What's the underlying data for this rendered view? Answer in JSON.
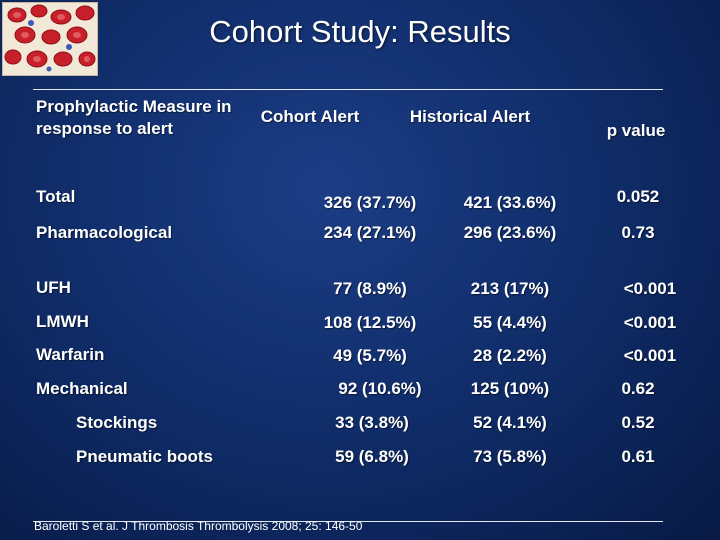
{
  "title": "Cohort Study: Results",
  "table": {
    "headers": {
      "measure": "Prophylactic Measure in response to alert",
      "cohort": "Cohort Alert",
      "historical": "Historical Alert",
      "pvalue": "p value"
    },
    "rows": [
      {
        "measure": "Total",
        "cohort": "326 (37.7%)",
        "historical": "421 (33.6%)",
        "pvalue": "0.052"
      },
      {
        "measure": "Pharmacological",
        "cohort": "234 (27.1%)",
        "historical": "296 (23.6%)",
        "pvalue": "0.73"
      },
      {
        "measure": "UFH",
        "cohort": "77 (8.9%)",
        "historical": "213 (17%)",
        "pvalue": "<0.001"
      },
      {
        "measure": "LMWH",
        "cohort": "108 (12.5%)",
        "historical": "55 (4.4%)",
        "pvalue": "<0.001"
      },
      {
        "measure": "Warfarin",
        "cohort": "49 (5.7%)",
        "historical": "28 (2.2%)",
        "pvalue": "<0.001"
      },
      {
        "measure": "Mechanical",
        "cohort": "92 (10.6%)",
        "historical": "125 (10%)",
        "pvalue": "0.62"
      },
      {
        "measure": "Stockings",
        "cohort": "33 (3.8%)",
        "historical": "52 (4.1%)",
        "pvalue": "0.52"
      },
      {
        "measure": "Pneumatic boots",
        "cohort": "59 (6.8%)",
        "historical": "73 (5.8%)",
        "pvalue": "0.61"
      }
    ]
  },
  "citation": "Baroletti S et al. J Thrombosis Thrombolysis 2008; 25: 146-50",
  "logo_icon": "red-blood-cells-image"
}
